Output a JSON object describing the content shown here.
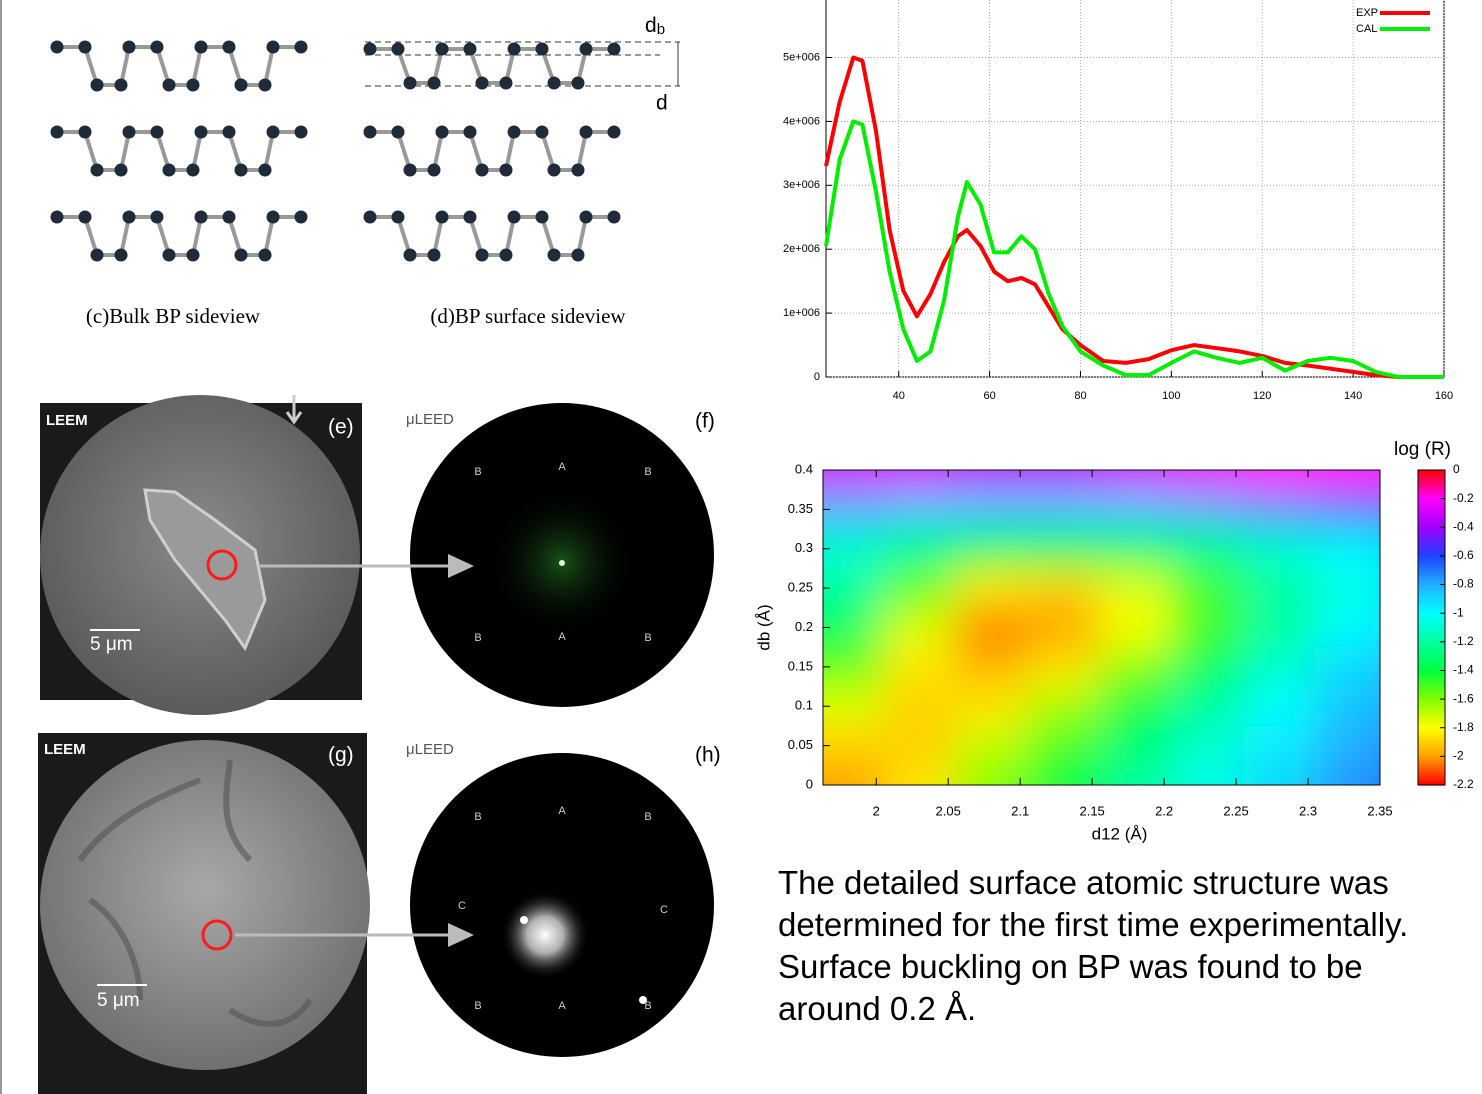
{
  "figures": {
    "structures": {
      "bulk_caption": "(c)Bulk BP sideview",
      "surface_caption": "(d)BP surface sideview",
      "db_label": {
        "main": "d",
        "sub": "b"
      },
      "d1_label": "d"
    },
    "leem_top": {
      "title": "LEEM",
      "panel": "(e)",
      "scale": "5 μm"
    },
    "leed_top": {
      "title": "μLEED",
      "panel": "(f)",
      "spots": [
        "B",
        "A",
        "B",
        "B",
        "A",
        "B"
      ]
    },
    "leem_bottom": {
      "title": "LEEM",
      "panel": "(g)",
      "scale": "5 μm"
    },
    "leed_bottom": {
      "title": "μLEED",
      "panel": "(h)",
      "spots": [
        "B",
        "A",
        "B",
        "C",
        "C",
        "B",
        "A",
        "B"
      ]
    }
  },
  "chart_data": [
    {
      "type": "line",
      "x": [
        24,
        27,
        30,
        32,
        35,
        38,
        41,
        44,
        47,
        50,
        53,
        55,
        58,
        61,
        64,
        67,
        70,
        73,
        76,
        80,
        85,
        90,
        95,
        100,
        105,
        110,
        115,
        120,
        125,
        130,
        135,
        140,
        145,
        150,
        160
      ],
      "series": [
        {
          "name": "EXP",
          "color": "#ff0000",
          "values": [
            3300000,
            4300000,
            5000000,
            4950000,
            3850000,
            2300000,
            1350000,
            950000,
            1300000,
            1800000,
            2200000,
            2300000,
            2050000,
            1650000,
            1500000,
            1550000,
            1450000,
            1100000,
            750000,
            500000,
            250000,
            220000,
            280000,
            420000,
            500000,
            450000,
            400000,
            330000,
            220000,
            180000,
            130000,
            80000,
            30000,
            0,
            0
          ]
        },
        {
          "name": "CAL",
          "color": "#00ee00",
          "values": [
            2050000,
            3400000,
            4000000,
            3950000,
            2900000,
            1650000,
            750000,
            250000,
            400000,
            1200000,
            2500000,
            3050000,
            2700000,
            1950000,
            1950000,
            2200000,
            2000000,
            1300000,
            800000,
            400000,
            180000,
            30000,
            30000,
            220000,
            400000,
            300000,
            220000,
            300000,
            100000,
            250000,
            300000,
            250000,
            80000,
            0,
            0
          ]
        }
      ],
      "xlim": [
        24,
        160
      ],
      "ylim": [
        0,
        5900000
      ],
      "xticks": [
        40,
        60,
        80,
        100,
        120,
        140,
        160
      ],
      "yticks": [
        0,
        {
          "value": 1000000,
          "label": "1e+006"
        },
        {
          "value": 2000000,
          "label": "2e+006"
        },
        {
          "value": 3000000,
          "label": "3e+006"
        },
        {
          "value": 4000000,
          "label": "4e+006"
        },
        {
          "value": 5000000,
          "label": "5e+006"
        }
      ],
      "grid": true,
      "legend": "upper-right"
    },
    {
      "type": "heatmap",
      "xlabel": "d12 (Å)",
      "ylabel": "db (Å)",
      "colorbar_label": "log (R)",
      "x": [
        1.98,
        2.03,
        2.08,
        2.13,
        2.18,
        2.23,
        2.28,
        2.33,
        2.38
      ],
      "y": [
        0,
        0.05,
        0.1,
        0.15,
        0.2,
        0.25,
        0.3,
        0.35,
        0.4
      ],
      "z": [
        [
          -2.0,
          -1.85,
          -1.6,
          -1.4,
          -1.2,
          -1.05,
          -0.9,
          -0.75,
          -0.65
        ],
        [
          -1.9,
          -1.9,
          -1.7,
          -1.5,
          -1.3,
          -1.1,
          -0.95,
          -0.8,
          -0.7
        ],
        [
          -1.75,
          -1.9,
          -1.85,
          -1.65,
          -1.4,
          -1.2,
          -1.0,
          -0.85,
          -0.75
        ],
        [
          -1.55,
          -1.85,
          -1.95,
          -1.85,
          -1.6,
          -1.35,
          -1.1,
          -0.9,
          -0.8
        ],
        [
          -1.35,
          -1.75,
          -2.05,
          -2.0,
          -1.8,
          -1.5,
          -1.2,
          -1.0,
          -0.85
        ],
        [
          -1.2,
          -1.55,
          -1.85,
          -1.9,
          -1.75,
          -1.5,
          -1.2,
          -1.05,
          -0.9
        ],
        [
          -1.1,
          -1.25,
          -1.4,
          -1.4,
          -1.35,
          -1.25,
          -1.1,
          -1.0,
          -0.9
        ],
        [
          -0.8,
          -0.85,
          -0.85,
          -0.85,
          -0.85,
          -0.8,
          -0.75,
          -0.7,
          -0.65
        ],
        [
          -0.3,
          -0.3,
          -0.35,
          -0.35,
          -0.3,
          -0.25,
          -0.2,
          -0.2,
          -0.2
        ]
      ],
      "xlim": [
        1.963,
        2.35
      ],
      "ylim": [
        0,
        0.4
      ],
      "xticks": [
        2,
        2.05,
        2.1,
        2.15,
        2.2,
        2.25,
        2.3,
        2.35
      ],
      "yticks": [
        0,
        0.05,
        0.1,
        0.15,
        0.2,
        0.25,
        0.3,
        0.35,
        0.4
      ],
      "clim": [
        -2.2,
        0
      ],
      "cticks": [
        0,
        -0.2,
        -0.4,
        -0.6,
        -0.8,
        -1,
        -1.2,
        -1.4,
        -1.6,
        -1.8,
        -2,
        -2.2
      ],
      "colormap": [
        "#ff0000",
        "#ff00ff",
        "#a000ff",
        "#2040ff",
        "#20b0ff",
        "#00ffff",
        "#00ffa0",
        "#00ff40",
        "#80ff00",
        "#ffff00",
        "#ffa000",
        "#ff0000"
      ]
    }
  ],
  "caption": [
    "The detailed surface atomic structure was",
    "determined for the first time experimentally.",
    "Surface buckling on BP was found to be",
    "around 0.2 Å."
  ]
}
